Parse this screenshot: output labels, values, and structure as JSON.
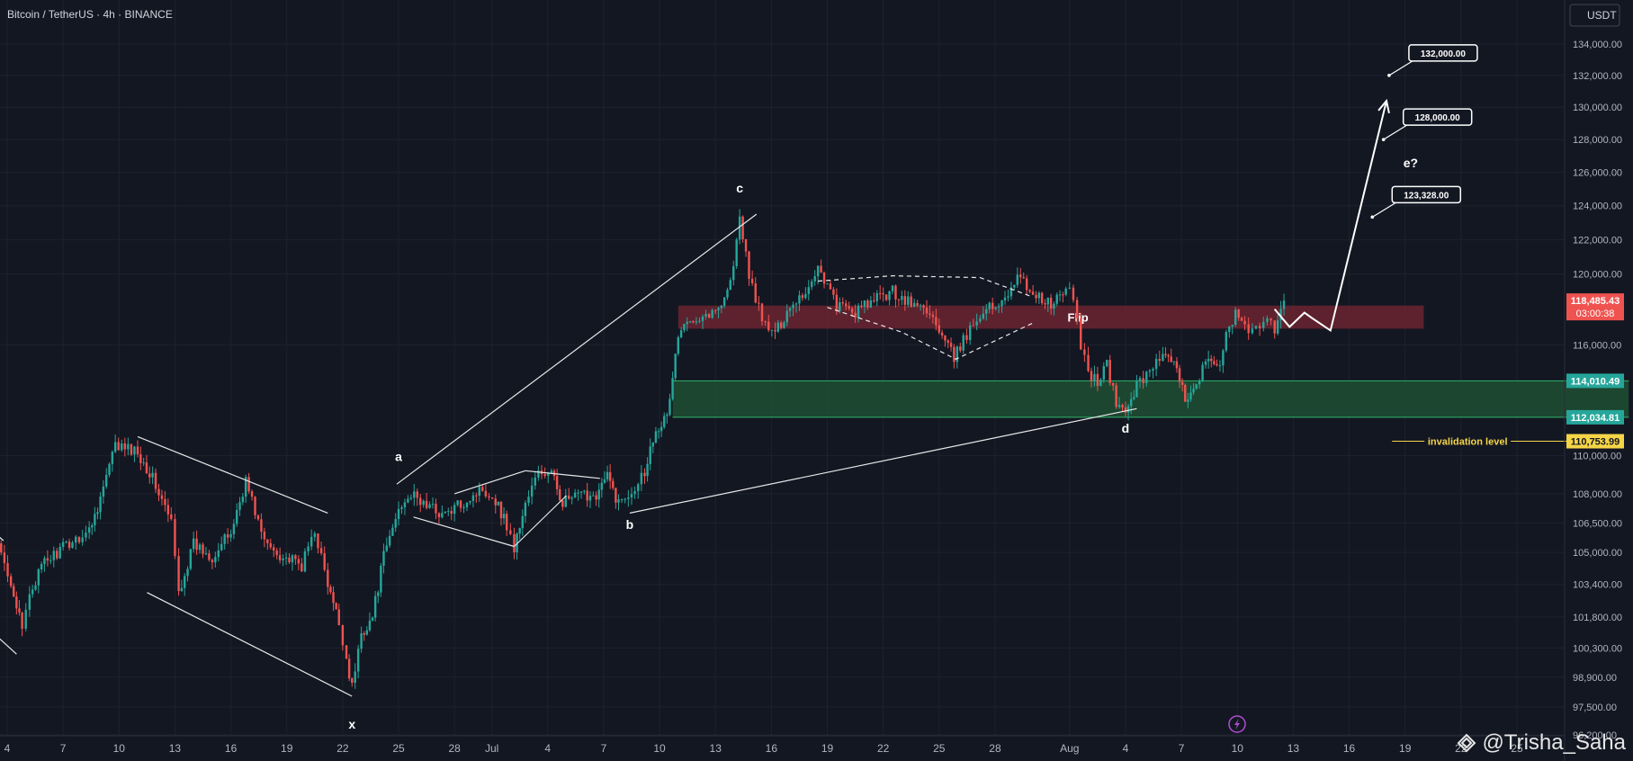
{
  "header": {
    "title": "Bitcoin / TetherUS · 4h · BINANCE",
    "currency": "USDT"
  },
  "watermark": {
    "text": "@Trisha_Saha"
  },
  "colors": {
    "background": "#131722",
    "up": "#26a69a",
    "down": "#ef5350",
    "grid": "#1e222d",
    "axis_text": "#b2b5be",
    "flip_zone": "#6b2430",
    "support_zone": "#1f4f32",
    "invalidation": "#f5d547",
    "white": "#ffffff"
  },
  "icons": {
    "flash": "lightning-icon",
    "logo": "tradingview-logo-icon"
  },
  "chart_data": {
    "type": "candlestick",
    "symbol": "Bitcoin / TetherUS",
    "interval": "4h",
    "exchange": "BINANCE",
    "price_scale": "log",
    "ylim": [
      95400,
      136000
    ],
    "x_range_days": [
      -27.2,
      28.3
    ],
    "x_tick_labels": [
      {
        "label": "4",
        "d": -26
      },
      {
        "label": "7",
        "d": -23
      },
      {
        "label": "10",
        "d": -20
      },
      {
        "label": "13",
        "d": -17
      },
      {
        "label": "16",
        "d": -14
      },
      {
        "label": "19",
        "d": -11
      },
      {
        "label": "22",
        "d": -8
      },
      {
        "label": "25",
        "d": -5
      },
      {
        "label": "28",
        "d": -2
      },
      {
        "label": "Jul",
        "d": 0
      },
      {
        "label": "4",
        "d": 3
      },
      {
        "label": "7",
        "d": 6
      },
      {
        "label": "10",
        "d": 9
      },
      {
        "label": "13",
        "d": 12
      },
      {
        "label": "16",
        "d": 15
      },
      {
        "label": "19",
        "d": 18
      },
      {
        "label": "22",
        "d": 21
      },
      {
        "label": "25",
        "d": 24
      },
      {
        "label": "28",
        "d": 27
      },
      {
        "label": "Aug",
        "d": 31
      },
      {
        "label": "4",
        "d": 34
      },
      {
        "label": "7",
        "d": 37
      },
      {
        "label": "10",
        "d": 40
      },
      {
        "label": "13",
        "d": 43
      },
      {
        "label": "16",
        "d": 46
      },
      {
        "label": "19",
        "d": 49
      },
      {
        "label": "22",
        "d": 52
      },
      {
        "label": "25",
        "d": 55
      }
    ],
    "y_tick_labels": [
      "134,000.00",
      "132,000.00",
      "130,000.00",
      "128,000.00",
      "126,000.00",
      "124,000.00",
      "122,000.00",
      "120,000.00",
      "116,000.00",
      "110,000.00",
      "108,000.00",
      "106,500.00",
      "105,000.00",
      "103,400.00",
      "101,800.00",
      "100,300.00",
      "98,900.00",
      "97,500.00",
      "96,200.00"
    ],
    "y_tick_values": [
      134000,
      132000,
      130000,
      128000,
      126000,
      124000,
      122000,
      120000,
      116000,
      110000,
      108000,
      106500,
      105000,
      103400,
      101800,
      100300,
      98900,
      97500,
      96200
    ],
    "anchors": [
      [
        -27.2,
        106000
      ],
      [
        -26.5,
        105300
      ],
      [
        -25.8,
        103600
      ],
      [
        -25.2,
        101100
      ],
      [
        -24.8,
        103000
      ],
      [
        -24.0,
        104500
      ],
      [
        -22.5,
        105600
      ],
      [
        -21.6,
        106100
      ],
      [
        -21.0,
        107800
      ],
      [
        -20.2,
        110500
      ],
      [
        -19.0,
        110200
      ],
      [
        -18.2,
        108800
      ],
      [
        -17.2,
        106500
      ],
      [
        -16.8,
        103000
      ],
      [
        -16.0,
        105400
      ],
      [
        -15.0,
        104800
      ],
      [
        -14.0,
        106000
      ],
      [
        -13.2,
        108700
      ],
      [
        -12.2,
        105500
      ],
      [
        -11.2,
        104800
      ],
      [
        -10.2,
        104300
      ],
      [
        -9.5,
        106200
      ],
      [
        -8.8,
        103300
      ],
      [
        -8.2,
        101500
      ],
      [
        -7.8,
        99800
      ],
      [
        -7.5,
        98400
      ],
      [
        -7.0,
        101000
      ],
      [
        -6.4,
        101800
      ],
      [
        -5.8,
        104800
      ],
      [
        -5.0,
        107200
      ],
      [
        -4.5,
        108000
      ],
      [
        -3.5,
        107400
      ],
      [
        -2.5,
        106900
      ],
      [
        -1.5,
        107600
      ],
      [
        -0.5,
        108300
      ],
      [
        0.2,
        107700
      ],
      [
        0.8,
        106400
      ],
      [
        1.2,
        105200
      ],
      [
        1.8,
        107500
      ],
      [
        2.5,
        109100
      ],
      [
        3.2,
        109000
      ],
      [
        3.8,
        107600
      ],
      [
        4.8,
        107900
      ],
      [
        5.6,
        108000
      ],
      [
        6.2,
        108900
      ],
      [
        6.8,
        107500
      ],
      [
        7.5,
        108200
      ],
      [
        8.2,
        109200
      ],
      [
        8.8,
        111500
      ],
      [
        9.4,
        112000
      ],
      [
        10.0,
        116500
      ],
      [
        10.8,
        117600
      ],
      [
        12.0,
        117800
      ],
      [
        12.8,
        119500
      ],
      [
        13.3,
        123100
      ],
      [
        13.8,
        120000
      ],
      [
        14.5,
        117300
      ],
      [
        15.2,
        116600
      ],
      [
        16.0,
        118200
      ],
      [
        17.0,
        119200
      ],
      [
        17.5,
        120500
      ],
      [
        18.5,
        118200
      ],
      [
        19.5,
        117800
      ],
      [
        20.5,
        118500
      ],
      [
        21.5,
        119000
      ],
      [
        22.5,
        118300
      ],
      [
        23.5,
        117900
      ],
      [
        24.0,
        116600
      ],
      [
        24.8,
        115300
      ],
      [
        25.3,
        116200
      ],
      [
        26.2,
        117800
      ],
      [
        27.2,
        118300
      ],
      [
        28.2,
        119800
      ],
      [
        29.2,
        118800
      ],
      [
        30.0,
        118200
      ],
      [
        30.8,
        119100
      ],
      [
        31.2,
        118700
      ],
      [
        31.6,
        116000
      ],
      [
        32.0,
        114500
      ],
      [
        32.5,
        114000
      ],
      [
        33.0,
        114900
      ],
      [
        33.5,
        112700
      ],
      [
        34.0,
        112400
      ],
      [
        34.6,
        113700
      ],
      [
        35.3,
        114700
      ],
      [
        36.0,
        115400
      ],
      [
        36.6,
        114800
      ],
      [
        37.2,
        113100
      ],
      [
        37.8,
        113900
      ],
      [
        38.3,
        115100
      ],
      [
        38.9,
        114600
      ],
      [
        39.4,
        116400
      ],
      [
        39.9,
        117700
      ],
      [
        40.4,
        117200
      ],
      [
        40.8,
        116800
      ],
      [
        41.2,
        117000
      ],
      [
        41.6,
        117300
      ],
      [
        42.0,
        116900
      ],
      [
        42.5,
        118485
      ]
    ],
    "last_price": {
      "label": "118,485.43",
      "countdown": "03:00:38",
      "value": 118485.43
    },
    "zones": [
      {
        "name": "Flip",
        "from_day": 10.0,
        "to_day": 50.0,
        "low": 116900,
        "high": 118200,
        "color": "#6b2430"
      },
      {
        "name": "",
        "from_day": 9.7,
        "to_day": 61.0,
        "low": 112034.81,
        "high": 114010.49,
        "color": "#1f4f32"
      }
    ],
    "price_badges": [
      {
        "label": "114,010.49",
        "value": 114010.49,
        "color": "#26a69a"
      },
      {
        "label": "112,034.81",
        "value": 112034.81,
        "color": "#26a69a"
      },
      {
        "label": "110,753.99",
        "value": 110753.99,
        "color": "#f5d547"
      }
    ],
    "invalidation": {
      "label": "invalidation level",
      "value": 110753.99,
      "from_day": 48.3,
      "to_day": 59.0
    },
    "wave_labels": [
      {
        "label": "x",
        "d": -7.5,
        "price": 96500
      },
      {
        "label": "a",
        "d": -5.0,
        "price": 109700
      },
      {
        "label": "b",
        "d": 7.4,
        "price": 106200
      },
      {
        "label": "c",
        "d": 13.3,
        "price": 124800
      },
      {
        "label": "d",
        "d": 34.0,
        "price": 111200
      },
      {
        "label": "e?",
        "d": 49.3,
        "price": 126300
      }
    ],
    "trendlines": [
      {
        "points": [
          [
            -27.2,
            106400
          ],
          [
            -26.2,
            105600
          ]
        ]
      },
      {
        "points": [
          [
            -27.2,
            101400
          ],
          [
            -25.5,
            100000
          ]
        ]
      },
      {
        "points": [
          [
            -19.0,
            111000
          ],
          [
            -8.8,
            107000
          ]
        ]
      },
      {
        "points": [
          [
            -18.5,
            103000
          ],
          [
            -7.5,
            98000
          ]
        ]
      },
      {
        "points": [
          [
            -5.1,
            108500
          ],
          [
            14.2,
            123500
          ]
        ]
      },
      {
        "points": [
          [
            7.4,
            107000
          ],
          [
            34.6,
            112500
          ]
        ]
      },
      {
        "points": [
          [
            -4.2,
            106800
          ],
          [
            1.2,
            105300
          ]
        ]
      },
      {
        "points": [
          [
            -2.0,
            108000
          ],
          [
            1.8,
            109200
          ]
        ]
      },
      {
        "points": [
          [
            1.2,
            105300
          ],
          [
            4.0,
            107900
          ]
        ]
      },
      {
        "points": [
          [
            1.8,
            109200
          ],
          [
            5.8,
            108800
          ]
        ]
      }
    ],
    "dashed_lines": [
      {
        "points": [
          [
            17.5,
            119600
          ],
          [
            21.5,
            119900
          ],
          [
            26.2,
            119800
          ],
          [
            29.0,
            118700
          ]
        ]
      },
      {
        "points": [
          [
            18.0,
            118100
          ],
          [
            22.0,
            116700
          ],
          [
            24.9,
            115200
          ],
          [
            29.0,
            117200
          ]
        ]
      }
    ],
    "projection": {
      "points": [
        [
          42.0,
          118000
        ],
        [
          42.8,
          117000
        ],
        [
          43.6,
          117800
        ],
        [
          44.0,
          117500
        ],
        [
          45.0,
          116800
        ],
        [
          48.0,
          130400
        ]
      ]
    },
    "targets": [
      {
        "label": "132,000.00",
        "value": 132000,
        "d": 49.3
      },
      {
        "label": "128,000.00",
        "value": 128000,
        "d": 49.0
      },
      {
        "label": "123,328.00",
        "value": 123328,
        "d": 48.4
      }
    ]
  }
}
